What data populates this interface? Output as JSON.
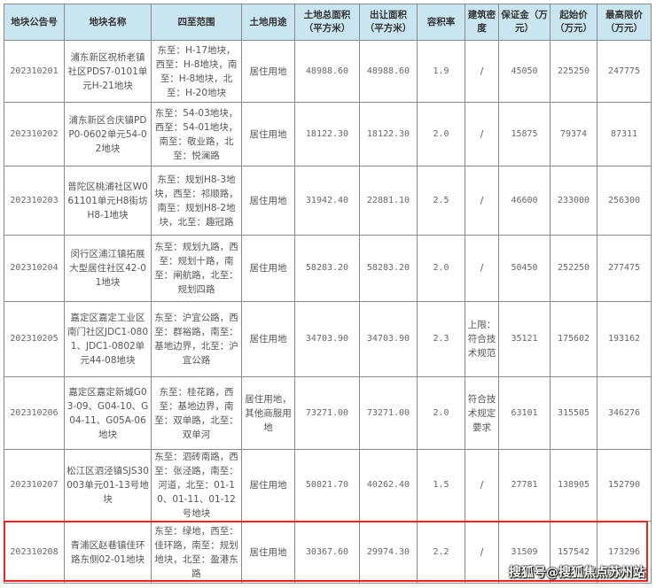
{
  "headers": [
    "地块公告号",
    "地块名称",
    "四至范围",
    "土地用途",
    "土地总面积（平方米）",
    "出让面积（平方米）",
    "容积率",
    "建筑密度",
    "保证金（万元）",
    "起始价（万元）",
    "最高限价（万元）"
  ],
  "rows": [
    [
      "202310201",
      "浦东新区祝桥老镇社区PDS7-0101单元H-21地块",
      "东至：H-17地块，西至：H-8地块，南至：H-8地块，北至：H-20地块",
      "居住用地",
      "48988.60",
      "48988.60",
      "1.9",
      "/",
      "45050",
      "225250",
      "247775"
    ],
    [
      "202310202",
      "浦东新区合庆镇PDP0-0602单元54-02地块",
      "东至：54-03地块，西至：54-01地块，南至：敬业路，北至：悦澜路",
      "居住用地",
      "18122.30",
      "18122.30",
      "2.0",
      "/",
      "15875",
      "79374",
      "87311"
    ],
    [
      "202310203",
      "普陀区桃浦社区W061101单元H8街坊H8-1地块",
      "东至：规划H8-3地块，西至：祁顺路，南至：规划H8-2地块，北至：趣冠路",
      "居住用地",
      "31942.40",
      "22881.10",
      "2.5",
      "/",
      "46600",
      "233000",
      "256300"
    ],
    [
      "202310204",
      "闵行区浦江镇拓展大型居住社区42-01地块",
      "东至：规划九路，西至：规划十路，南至：闸航路，北至：规划四路",
      "居住用地",
      "58283.20",
      "58283.20",
      "2.0",
      "/",
      "50450",
      "252250",
      "277475"
    ],
    [
      "202310205",
      "嘉定区嘉定工业区南门社区JDC1-0801、JDC1-0802单元44-08地块",
      "东至：沪宜公路，西至：群裕路，南至：基地边界，北至：沪宜公路",
      "居住用地",
      "34703.90",
      "34703.90",
      "2.3",
      "上限：符合技术规范",
      "35121",
      "175602",
      "193162"
    ],
    [
      "202310206",
      "嘉定区嘉定新城G03-09、G04-10、G04-11、G05A-06地块",
      "东至：桂花路，西至：基地边界，南至：双单路，北至：双单河",
      "居住用地，其他商服用地",
      "73271.00",
      "73271.00",
      "2.0",
      "符合技术规定要求",
      "63101",
      "315505",
      "346276"
    ],
    [
      "202310207",
      "松江区泗泾镇SJS30003单元01-13号地块",
      "东至：泗砖南路，西至：张泾路，南至：河道，北至：01-10、01-11、01-12号地块",
      "居住用地",
      "50821.70",
      "40262.40",
      "1.5",
      "/",
      "27781",
      "138905",
      "152790"
    ],
    [
      "202310208",
      "青浦区赵巷镇佳环路东侧02-01地块",
      "东至：绿地，西至：佳环路，南至：规划地块，北至：盈港东路",
      "居住用地",
      "30367.60",
      "29974.30",
      "2.2",
      "/",
      "31509",
      "157542",
      "173296"
    ]
  ],
  "highlight_color": "#e8261f",
  "header_color": "#c9e6f0",
  "watermark": "搜狐号@搜狐焦点苏州站"
}
